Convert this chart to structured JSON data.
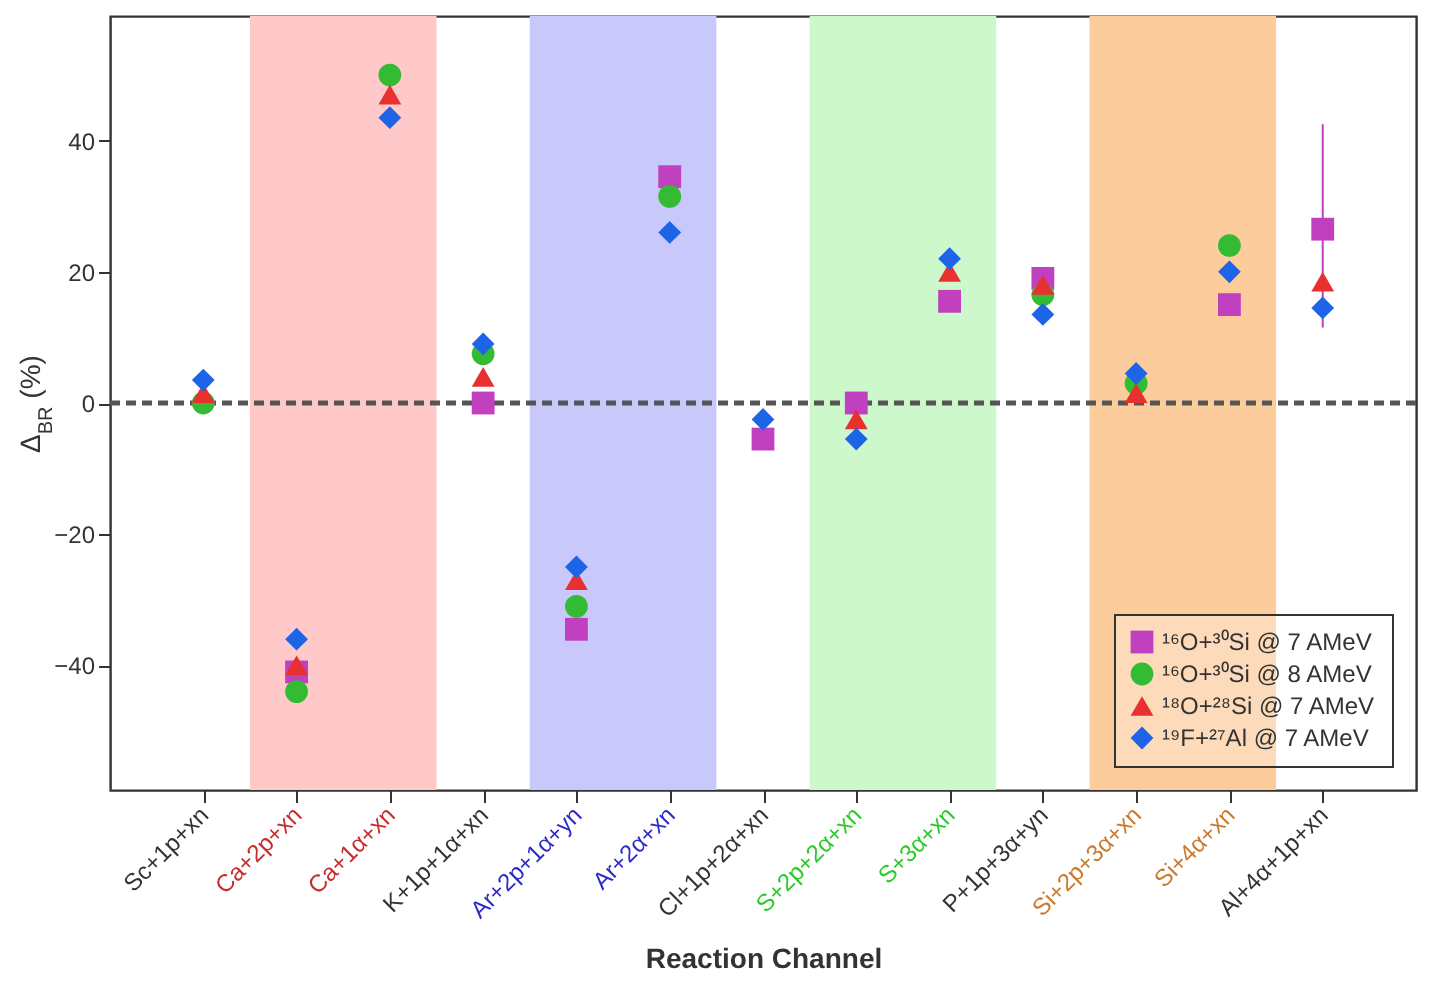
{
  "chart_data": {
    "type": "scatter",
    "xlabel": "Reaction Channel",
    "ylabel": "Δ$_{BR}$ (%)",
    "categories": [
      "Sc+1p+xn",
      "Ca+2p+xn",
      "Ca+1α+xn",
      "K+1p+1α+xn",
      "Ar+2p+1α+yn",
      "Ar+2α+xn",
      "Cl+1p+2α+xn",
      "S+2p+2α+xn",
      "S+3α+xn",
      "P+1p+3α+yn",
      "Si+2p+3α+xn",
      "Si+4α+xn",
      "Al+4α+1p+xn"
    ],
    "series": [
      {
        "name": "¹⁶O+³⁰Si @ 7 AMeV",
        "color": "#c040c0",
        "marker": "square",
        "values": [
          null,
          -41,
          null,
          0,
          -34.5,
          34.5,
          -5.5,
          0,
          15.5,
          19,
          null,
          15,
          26.5
        ],
        "errors": [
          null,
          null,
          null,
          null,
          null,
          null,
          null,
          null,
          null,
          null,
          null,
          null,
          [
            11.5,
            42.5
          ]
        ]
      },
      {
        "name": "¹⁶O+³⁰Si @ 8 AMeV",
        "color": "#33bb33",
        "marker": "circle",
        "values": [
          0,
          -44,
          50,
          7.5,
          -31,
          31.5,
          null,
          null,
          null,
          16.5,
          3,
          24,
          null
        ]
      },
      {
        "name": "¹⁸O+²⁸Si @ 7 AMeV",
        "color": "#e83030",
        "marker": "triangle",
        "values": [
          1.5,
          -40,
          47,
          4,
          -27,
          null,
          null,
          -2.5,
          20,
          18,
          1.5,
          null,
          18.5
        ]
      },
      {
        "name": "¹⁹F+²⁷Al @ 7 AMeV",
        "color": "#1e64e6",
        "marker": "diamond",
        "values": [
          3.5,
          -36,
          43.5,
          9,
          -25,
          26,
          -2.5,
          -5.5,
          22,
          13.5,
          4.5,
          20,
          14.5
        ]
      }
    ],
    "ylim": [
      -59,
      59
    ],
    "yticks": [
      -40,
      -20,
      0,
      20,
      40
    ],
    "ref_lines": [
      {
        "axis": "y",
        "value": 0,
        "color": "#555555",
        "line_style": "dashed"
      }
    ],
    "bands": [
      {
        "axis": "x",
        "from": "Ca+2p+xn",
        "to": "Ca+1α+xn",
        "color": "#ffc9c9"
      },
      {
        "axis": "x",
        "from": "Ar+2p+1α+yn",
        "to": "Ar+2α+xn",
        "color": "#c8c8fa"
      },
      {
        "axis": "x",
        "from": "S+2p+2α+xn",
        "to": "S+3α+xn",
        "color": "#ccf8cc"
      },
      {
        "axis": "x",
        "from": "Si+2p+3α+xn",
        "to": "Si+4α+xn",
        "color": "#fdcc9c"
      }
    ],
    "legend": "bottom right",
    "grid": false
  }
}
